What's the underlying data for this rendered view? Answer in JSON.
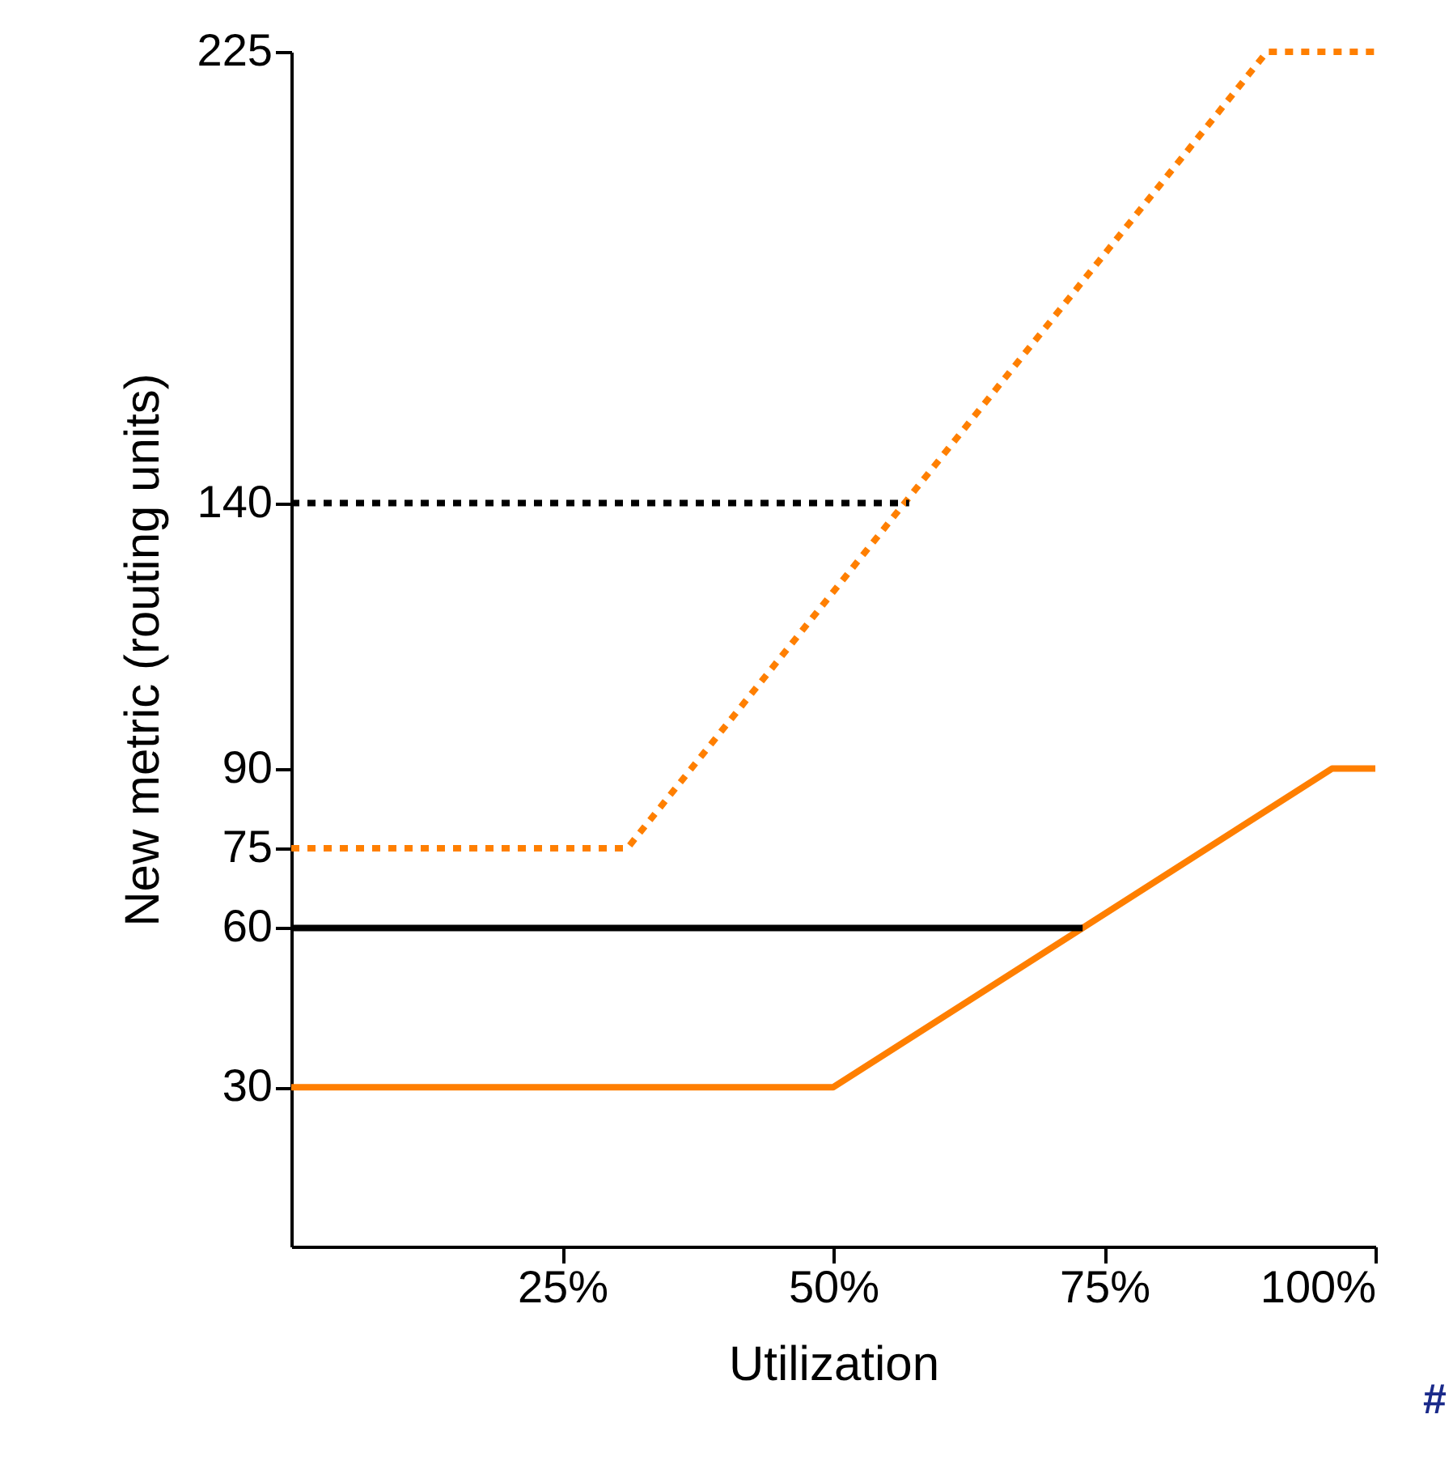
{
  "chart_data": {
    "type": "line",
    "xlabel": "Utilization",
    "ylabel": "New metric (routing units)",
    "xlim": [
      0,
      100
    ],
    "ylim": [
      0,
      225
    ],
    "xticks": [
      {
        "value": 25,
        "label": "25%"
      },
      {
        "value": 50,
        "label": "50%"
      },
      {
        "value": 75,
        "label": "75%"
      },
      {
        "value": 100,
        "label": "100%"
      }
    ],
    "yticks": [
      30,
      60,
      75,
      90,
      140,
      225
    ],
    "grid": false,
    "marker": "none",
    "annotations": [
      "#"
    ],
    "series": [
      {
        "color": "#ff7f00",
        "line_style": "dotted",
        "x": [
          0,
          31,
          90,
          100
        ],
        "values": [
          75,
          75,
          225,
          225
        ]
      },
      {
        "color": "#000000",
        "line_style": "dotted",
        "x": [
          0,
          57
        ],
        "values": [
          140,
          140
        ]
      },
      {
        "color": "#ff7f00",
        "line_style": "solid",
        "x": [
          0,
          50,
          96,
          100
        ],
        "values": [
          30,
          30,
          90,
          90
        ]
      },
      {
        "color": "#000000",
        "line_style": "solid",
        "x": [
          0,
          73
        ],
        "values": [
          60,
          60
        ]
      }
    ]
  }
}
